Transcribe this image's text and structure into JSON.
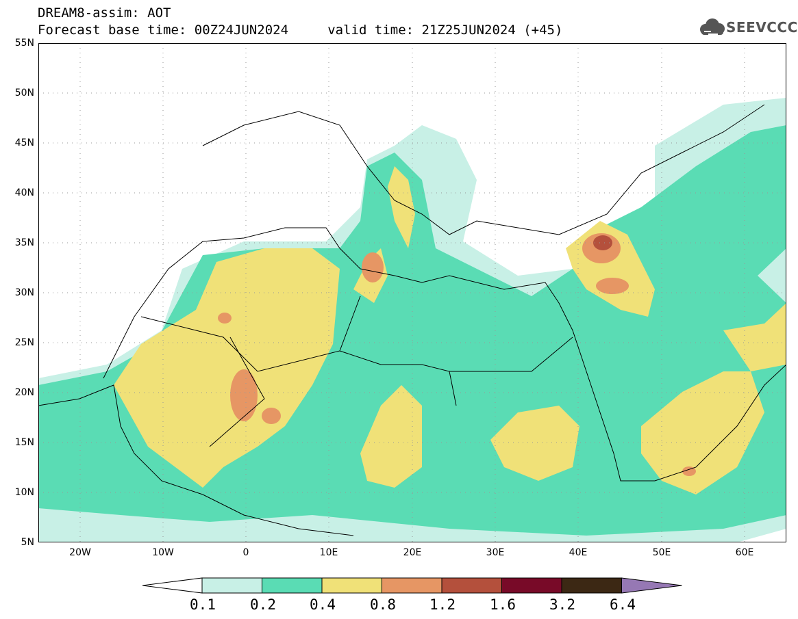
{
  "title": {
    "line1": "DREAM8-assim: AOT",
    "line2": "Forecast base time: 00Z24JUN2024     valid time: 21Z25JUN2024 (+45)"
  },
  "logo": {
    "text": "SEEVCCC",
    "icon": "cloud-icon"
  },
  "map": {
    "lat_labels": [
      "55N",
      "50N",
      "45N",
      "40N",
      "35N",
      "30N",
      "25N",
      "20N",
      "15N",
      "10N",
      "5N"
    ],
    "lon_labels": [
      "20W",
      "10W",
      "0",
      "10E",
      "20E",
      "30E",
      "40E",
      "50E",
      "60E"
    ],
    "lat_range": [
      5,
      55
    ],
    "lon_range": [
      -25,
      65
    ]
  },
  "legend": {
    "labels": [
      "0.1",
      "0.2",
      "0.4",
      "0.8",
      "1.2",
      "1.6",
      "3.2",
      "6.4"
    ],
    "colors": [
      "#ffffff",
      "#c8f0e6",
      "#5adcb4",
      "#f0e178",
      "#e69664",
      "#b4503c",
      "#780a28",
      "#3c2814",
      "#9678b4"
    ]
  }
}
